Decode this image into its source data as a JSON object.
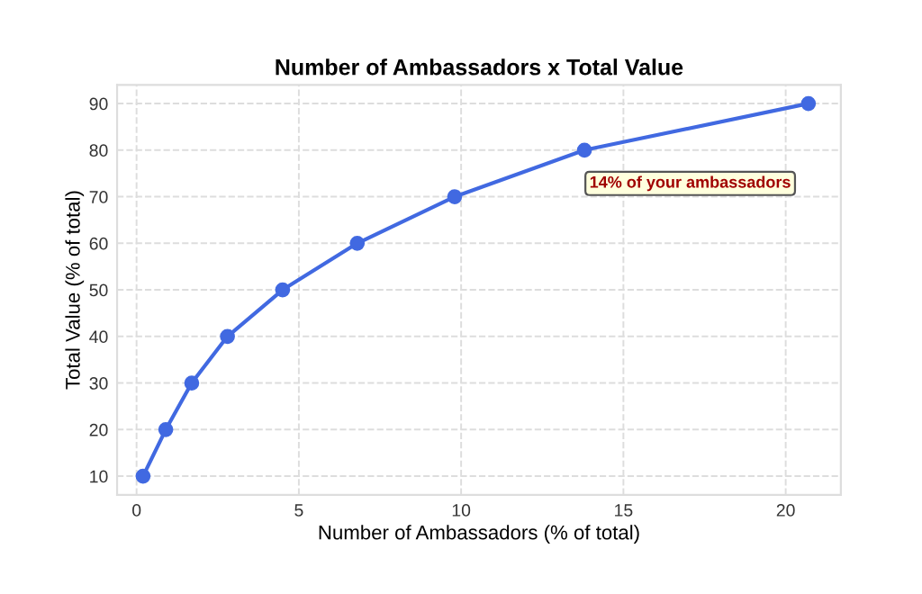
{
  "chart_data": {
    "type": "line",
    "title": "Number of Ambassadors x Total Value",
    "xlabel": "Number of Ambassadors (% of total)",
    "ylabel": "Total Value (% of total)",
    "series": [
      {
        "color": "#4169e1",
        "x": [
          0.2,
          0.9,
          1.7,
          2.8,
          4.5,
          6.8,
          9.8,
          13.8,
          20.7
        ],
        "values": [
          10,
          20,
          30,
          40,
          50,
          60,
          70,
          80,
          90
        ]
      }
    ],
    "xlim": [
      -0.6,
      21.7
    ],
    "ylim": [
      6,
      94
    ],
    "xticks": [
      0,
      5,
      10,
      15,
      20
    ],
    "yticks": [
      10,
      20,
      30,
      40,
      50,
      60,
      70,
      80,
      90
    ],
    "grid": true,
    "marker": "circle",
    "line_style": "solid",
    "annotations": [
      {
        "text": "14% of your ambassadors",
        "x": 13.8,
        "y": 80
      }
    ]
  }
}
